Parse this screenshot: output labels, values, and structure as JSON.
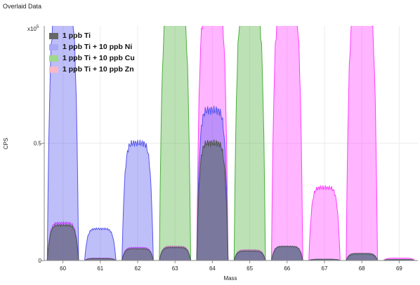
{
  "title": "Overlaid Data",
  "chart_data": {
    "type": "area",
    "xlabel": "Mass",
    "ylabel": "CPS",
    "y_multiplier_label": "x10",
    "y_multiplier_exponent": "5",
    "xlim": [
      59.5,
      69.5
    ],
    "ylim": [
      0,
      1.0
    ],
    "x_ticks": [
      "60",
      "61",
      "62",
      "63",
      "64",
      "65",
      "66",
      "67",
      "68",
      "69"
    ],
    "y_ticks": [
      {
        "value": 0,
        "label": "0"
      },
      {
        "value": 0.5,
        "label": "0.5"
      }
    ],
    "grid": true,
    "legend_position": "top-left",
    "series": [
      {
        "name": "1 ppb Ti + 10 ppb Zn",
        "color": "#ff3cff",
        "peaks": [
          {
            "mass": 60,
            "height": 0.16
          },
          {
            "mass": 61,
            "height": 0.01
          },
          {
            "mass": 62,
            "height": 0.055
          },
          {
            "mass": 63,
            "height": 0.06
          },
          {
            "mass": 64,
            "height": 1.1
          },
          {
            "mass": 65,
            "height": 0.045
          },
          {
            "mass": 66,
            "height": 1.1
          },
          {
            "mass": 67,
            "height": 0.31
          },
          {
            "mass": 68,
            "height": 1.1
          },
          {
            "mass": 69,
            "height": 0.01
          }
        ]
      },
      {
        "name": "1 ppb Ti + 10 ppb Cu",
        "color": "#4caf3c",
        "peaks": [
          {
            "mass": 60,
            "height": 0.15
          },
          {
            "mass": 61,
            "height": 0.008
          },
          {
            "mass": 62,
            "height": 0.05
          },
          {
            "mass": 63,
            "height": 1.1
          },
          {
            "mass": 64,
            "height": 0.5
          },
          {
            "mass": 65,
            "height": 1.1
          },
          {
            "mass": 66,
            "height": 0.06
          },
          {
            "mass": 67,
            "height": 0.005
          },
          {
            "mass": 68,
            "height": 0.025
          },
          {
            "mass": 69,
            "height": 0.004
          }
        ]
      },
      {
        "name": "1 ppb Ti + 10 ppb Ni",
        "color": "#5555ee",
        "peaks": [
          {
            "mass": 60,
            "height": 1.1
          },
          {
            "mass": 61,
            "height": 0.135
          },
          {
            "mass": 62,
            "height": 0.5
          },
          {
            "mass": 63,
            "height": 0.055
          },
          {
            "mass": 64,
            "height": 0.64
          },
          {
            "mass": 65,
            "height": 0.04
          },
          {
            "mass": 66,
            "height": 0.06
          },
          {
            "mass": 67,
            "height": 0.005
          },
          {
            "mass": 68,
            "height": 0.03
          },
          {
            "mass": 69,
            "height": 0.004
          }
        ]
      },
      {
        "name": "1 ppb Ti",
        "color": "#555555",
        "peaks": [
          {
            "mass": 60,
            "height": 0.15
          },
          {
            "mass": 61,
            "height": 0.008
          },
          {
            "mass": 62,
            "height": 0.05
          },
          {
            "mass": 63,
            "height": 0.055
          },
          {
            "mass": 64,
            "height": 0.5
          },
          {
            "mass": 65,
            "height": 0.04
          },
          {
            "mass": 66,
            "height": 0.06
          },
          {
            "mass": 67,
            "height": 0.005
          },
          {
            "mass": 68,
            "height": 0.03
          },
          {
            "mass": 69,
            "height": 0.004
          }
        ]
      }
    ]
  },
  "legend": [
    {
      "label": "1 ppb Ti",
      "color": "#666666"
    },
    {
      "label": "1 ppb Ti + 10 ppb Ni",
      "color": "#a9a9f5"
    },
    {
      "label": "1 ppb Ti + 10 ppb Cu",
      "color": "#9fd98c"
    },
    {
      "label": "1 ppb Ti + 10 ppb Zn",
      "color": "#f7b8c8"
    }
  ]
}
